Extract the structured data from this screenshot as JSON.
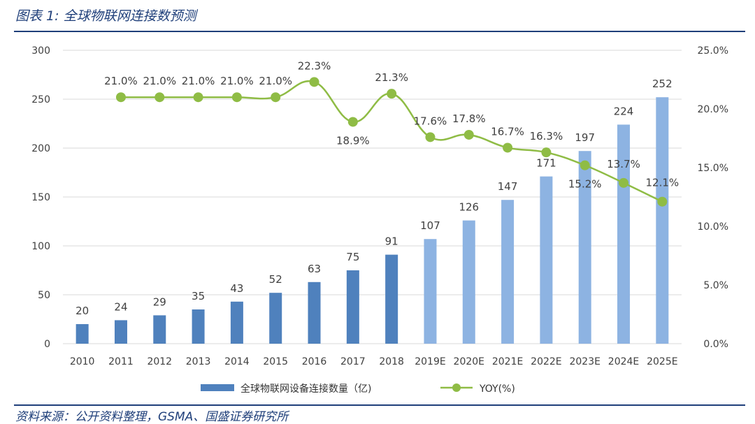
{
  "header": {
    "title": "图表 1: 全球物联网连接数预测"
  },
  "footer": {
    "source": "资料来源：公开资料整理，GSMA、国盛证券研究所"
  },
  "colors": {
    "bar_actual": "#4f81bd",
    "bar_forecast": "#8db3e2",
    "line": "#8fbc45",
    "grid": "#d9d9d9",
    "text": "#404040",
    "rule": "#1f3f7a"
  },
  "chart_data": {
    "type": "bar",
    "categories": [
      "2010",
      "2011",
      "2012",
      "2013",
      "2014",
      "2015",
      "2016",
      "2017",
      "2018",
      "2019E",
      "2020E",
      "2021E",
      "2022E",
      "2023E",
      "2024E",
      "2025E"
    ],
    "forecast_from_index": 9,
    "series": [
      {
        "name": "全球物联网设备连接数量（亿)",
        "kind": "bar",
        "axis": "left",
        "values": [
          20,
          24,
          29,
          35,
          43,
          52,
          63,
          75,
          91,
          107,
          126,
          147,
          171,
          197,
          224,
          252
        ],
        "labels": [
          "20",
          "24",
          "29",
          "35",
          "43",
          "52",
          "63",
          "75",
          "91",
          "107",
          "126",
          "147",
          "171",
          "197",
          "224",
          "252"
        ]
      },
      {
        "name": "YOY(%)",
        "kind": "line",
        "axis": "right",
        "values": [
          null,
          21.0,
          21.0,
          21.0,
          21.0,
          21.0,
          22.3,
          18.9,
          21.3,
          17.6,
          17.8,
          16.7,
          16.3,
          15.2,
          13.7,
          12.1
        ],
        "labels": [
          null,
          "21.0%",
          "21.0%",
          "21.0%",
          "21.0%",
          "21.0%",
          "22.3%",
          "18.9%",
          "21.3%",
          "17.6%",
          "17.8%",
          "16.7%",
          "16.3%",
          "15.2%",
          "13.7%",
          "12.1%"
        ]
      }
    ],
    "y_left": {
      "lim": [
        0,
        300
      ],
      "ticks": [
        "0",
        "50",
        "100",
        "150",
        "200",
        "250",
        "300"
      ]
    },
    "y_right": {
      "lim": [
        0,
        25
      ],
      "ticks": [
        "0.0%",
        "5.0%",
        "10.0%",
        "15.0%",
        "20.0%",
        "25.0%"
      ]
    },
    "grid": true,
    "legend_position": "bottom"
  }
}
